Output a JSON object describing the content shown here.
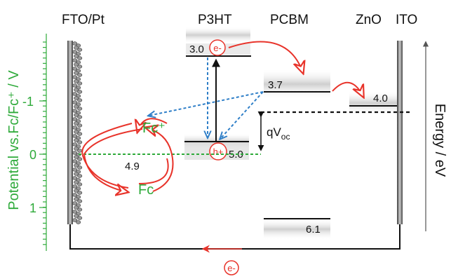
{
  "materials": {
    "fto_pt": "FTO/Pt",
    "p3ht": "P3HT",
    "pcbm": "PCBM",
    "zno": "ZnO",
    "ito": "ITO"
  },
  "axes": {
    "left_label": "Potential vs.Fc/Fc⁺ / V",
    "left_ticks": [
      "-1",
      "0",
      "1"
    ],
    "right_label": "Energy / eV"
  },
  "levels": {
    "p3ht_lumo": "3.0",
    "p3ht_homo": "5.0",
    "pcbm_lumo": "3.7",
    "pcbm_homo": "6.1",
    "zno_cb": "4.0",
    "redox": "4.9"
  },
  "species": {
    "fc_plus": "Fc⁺",
    "fc": "Fc",
    "electron": "e-",
    "hole": "h+"
  },
  "voltage": {
    "q": "qV",
    "sub": "oc"
  },
  "colors": {
    "green": "#2eaa3a",
    "red": "#e8332a",
    "blue": "#2f7fc8",
    "black": "#111111",
    "level_shade": "#d9d9d9"
  }
}
